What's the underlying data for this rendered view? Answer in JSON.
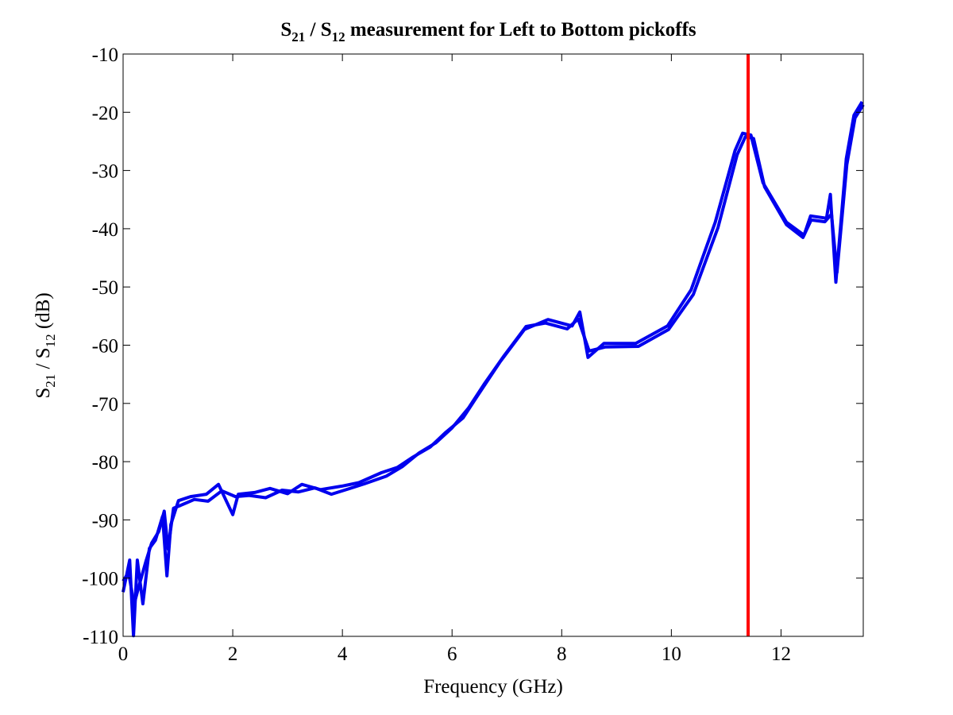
{
  "chart_data": {
    "type": "line",
    "title": "S21 / S12 measurement for Left to Bottom pickoffs",
    "title_parts": {
      "a": "S",
      "a_sub": "21",
      "sep": " / S",
      "b_sub": "12",
      "rest": " measurement for Left to Bottom pickoffs"
    },
    "xlabel": "Frequency (GHz)",
    "ylabel_parts": {
      "a": "S",
      "a_sub": "21",
      "sep": " / S",
      "b_sub": "12",
      "rest": " (dB)"
    },
    "xlim": [
      0,
      13.5
    ],
    "ylim": [
      -110,
      -10
    ],
    "xticks": [
      0,
      2,
      4,
      6,
      8,
      10,
      12
    ],
    "xtick_labels": [
      "0",
      "2",
      "4",
      "6",
      "8",
      "10",
      "12"
    ],
    "yticks": [
      -110,
      -100,
      -90,
      -80,
      -70,
      -60,
      -50,
      -40,
      -30,
      -20,
      -10
    ],
    "ytick_labels": [
      "-110",
      "-100",
      "-90",
      "-80",
      "-70",
      "-60",
      "-50",
      "-40",
      "-30",
      "-20",
      "-10"
    ],
    "grid": false,
    "marker_line": {
      "x": 11.4,
      "color": "#ff0000"
    },
    "series": [
      {
        "name": "S21",
        "color": "#0000ee",
        "x": [
          0,
          0.12,
          0.19,
          0.26,
          0.36,
          0.48,
          0.59,
          0.72,
          0.8,
          0.87,
          1.01,
          1.23,
          1.52,
          1.74,
          2.0,
          2.1,
          2.4,
          2.68,
          3.0,
          3.26,
          3.6,
          3.99,
          4.3,
          4.71,
          5.0,
          5.29,
          5.6,
          5.87,
          6.2,
          6.45,
          6.88,
          7.32,
          7.75,
          8.19,
          8.33,
          8.48,
          8.77,
          9.35,
          9.93,
          10.36,
          10.8,
          11.16,
          11.3,
          11.45,
          11.67,
          12.1,
          12.42,
          12.54,
          12.83,
          12.9,
          13.0,
          13.19,
          13.33,
          13.48
        ],
        "y": [
          -102.4,
          -96.9,
          -109.9,
          -96.9,
          -104.4,
          -94.9,
          -93.5,
          -89.4,
          -99.6,
          -90.8,
          -86.7,
          -86,
          -85.6,
          -83.9,
          -89.1,
          -85.6,
          -85.3,
          -84.6,
          -85.5,
          -83.9,
          -84.8,
          -84.2,
          -83.6,
          -81.9,
          -81.0,
          -79.2,
          -77.5,
          -75.1,
          -72.5,
          -68.9,
          -62.8,
          -57.3,
          -55.6,
          -56.7,
          -54.3,
          -62.1,
          -59.7,
          -59.7,
          -56.7,
          -50.5,
          -38.9,
          -26.6,
          -23.6,
          -23.9,
          -32.1,
          -38.9,
          -41.1,
          -37.8,
          -38.2,
          -34.1,
          -49.2,
          -28.0,
          -20.5,
          -18.2
        ]
      },
      {
        "name": "S12",
        "color": "#0000ee",
        "x": [
          0,
          0.1,
          0.2,
          0.3,
          0.42,
          0.52,
          0.65,
          0.75,
          0.82,
          0.92,
          1.05,
          1.3,
          1.55,
          1.8,
          2.05,
          2.3,
          2.6,
          2.9,
          3.2,
          3.5,
          3.8,
          4.1,
          4.4,
          4.8,
          5.1,
          5.4,
          5.7,
          6.0,
          6.3,
          6.6,
          6.95,
          7.35,
          7.7,
          8.1,
          8.3,
          8.5,
          8.8,
          9.4,
          9.95,
          10.4,
          10.85,
          11.2,
          11.35,
          11.5,
          11.7,
          12.1,
          12.4,
          12.55,
          12.8,
          12.92,
          13.02,
          13.2,
          13.35,
          13.5
        ],
        "y": [
          -100.5,
          -99,
          -104.5,
          -101,
          -97,
          -94,
          -92,
          -88.5,
          -95,
          -88,
          -87.5,
          -86.5,
          -86.8,
          -85,
          -86,
          -85.8,
          -86.2,
          -84.9,
          -85.2,
          -84.5,
          -85.6,
          -84.7,
          -83.8,
          -82.5,
          -80.8,
          -78.5,
          -76.8,
          -74.2,
          -70.8,
          -66.5,
          -61.8,
          -56.8,
          -56.2,
          -57.2,
          -55.5,
          -61,
          -60.3,
          -60.2,
          -57.3,
          -51.3,
          -39.8,
          -27.3,
          -24.2,
          -24.5,
          -32.8,
          -39.3,
          -41.5,
          -38.5,
          -38.8,
          -37.5,
          -47.5,
          -29,
          -21,
          -18.7
        ]
      }
    ]
  }
}
